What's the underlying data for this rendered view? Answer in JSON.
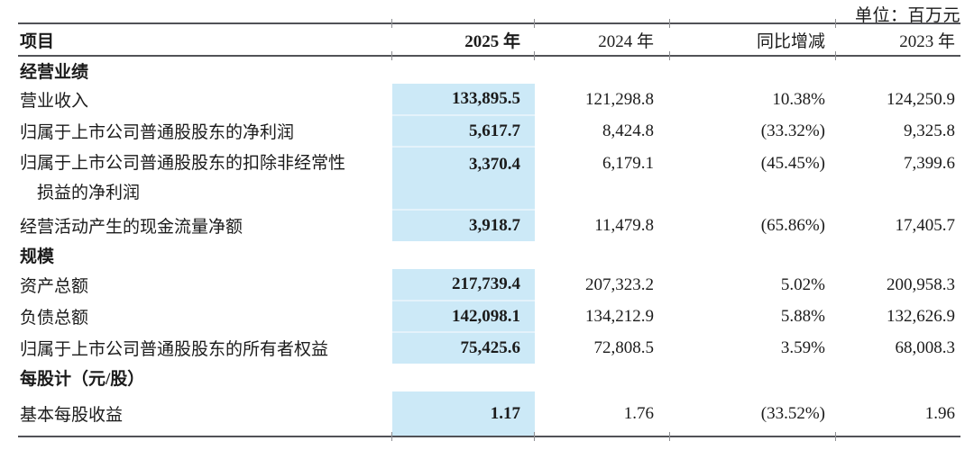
{
  "unit_label": "单位：百万元",
  "columns": [
    "项目",
    "2025 年",
    "2024 年",
    "同比增减",
    "2023 年"
  ],
  "colors": {
    "highlight": "#cce9f7",
    "rule": "#515257",
    "text": "#1b1b1b"
  },
  "sections": [
    {
      "title": "经营业绩",
      "rows": [
        {
          "label": "营业收入",
          "values": [
            "133,895.5",
            "121,298.8",
            "10.38%",
            "124,250.9"
          ]
        },
        {
          "label": "归属于上市公司普通股股东的净利润",
          "values": [
            "5,617.7",
            "8,424.8",
            "(33.32%)",
            "9,325.8"
          ]
        },
        {
          "label": "归属于上市公司普通股股东的扣除非经常性",
          "label_line2": "损益的净利润",
          "values": [
            "3,370.4",
            "6,179.1",
            "(45.45%)",
            "7,399.6"
          ]
        },
        {
          "label": "经营活动产生的现金流量净额",
          "values": [
            "3,918.7",
            "11,479.8",
            "(65.86%)",
            "17,405.7"
          ]
        }
      ]
    },
    {
      "title": "规模",
      "rows": [
        {
          "label": "资产总额",
          "values": [
            "217,739.4",
            "207,323.2",
            "5.02%",
            "200,958.3"
          ]
        },
        {
          "label": "负债总额",
          "values": [
            "142,098.1",
            "134,212.9",
            "5.88%",
            "132,626.9"
          ]
        },
        {
          "label": "归属于上市公司普通股股东的所有者权益",
          "values": [
            "75,425.6",
            "72,808.5",
            "3.59%",
            "68,008.3"
          ]
        }
      ]
    },
    {
      "title": "每股计（元/股）",
      "rows": [
        {
          "label": "基本每股收益",
          "values": [
            "1.17",
            "1.76",
            "(33.52%)",
            "1.96"
          ]
        }
      ]
    }
  ]
}
